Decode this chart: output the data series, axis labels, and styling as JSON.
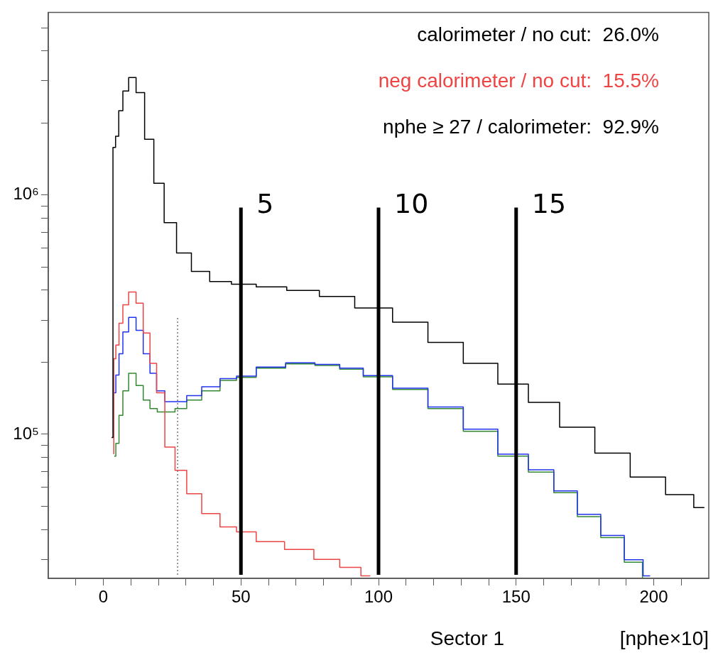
{
  "chart_data": {
    "type": "step",
    "title": "Sector 1",
    "xlabel": "[nphe×10]",
    "annotations": [
      "calorimeter / no cut:  26.0%",
      "nphe ≥ 27 / calorimeter:  92.9%",
      {
        "text": "5",
        "x": 50,
        "y": 900000
      },
      {
        "text": "10",
        "x": 100,
        "y": 900000
      },
      {
        "text": "15",
        "x": 150,
        "y": 900000
      }
    ],
    "xlim": [
      -20,
      220
    ],
    "xticks": [
      {
        "value": -10,
        "label": null
      },
      0,
      {
        "value": 10,
        "label": null
      },
      {
        "value": 20,
        "label": null
      },
      {
        "value": 30,
        "label": null
      },
      {
        "value": 40,
        "label": null
      },
      50,
      {
        "value": 60,
        "label": null
      },
      {
        "value": 70,
        "label": null
      },
      {
        "value": 80,
        "label": null
      },
      {
        "value": 90,
        "label": null
      },
      100,
      {
        "value": 110,
        "label": null
      },
      {
        "value": 120,
        "label": null
      },
      {
        "value": 130,
        "label": null
      },
      {
        "value": 140,
        "label": null
      },
      150,
      {
        "value": 160,
        "label": null
      },
      {
        "value": 170,
        "label": null
      },
      {
        "value": 180,
        "label": null
      },
      {
        "value": 190,
        "label": null
      },
      200,
      {
        "value": 210,
        "label": null
      }
    ],
    "ylim": [
      25000,
      5800000
    ],
    "yticks": [
      {
        "value": 30000,
        "label": null
      },
      {
        "value": 40000,
        "label": null
      },
      {
        "value": 50000,
        "label": null
      },
      {
        "value": 60000,
        "label": null
      },
      {
        "value": 70000,
        "label": null
      },
      {
        "value": 80000,
        "label": null
      },
      {
        "value": 90000,
        "label": null
      },
      {
        "value": 100000,
        "label": "10⁵"
      },
      {
        "value": 200000,
        "label": null
      },
      {
        "value": 300000,
        "label": null
      },
      {
        "value": 400000,
        "label": null
      },
      {
        "value": 500000,
        "label": null
      },
      {
        "value": 600000,
        "label": null
      },
      {
        "value": 700000,
        "label": null
      },
      {
        "value": 800000,
        "label": null
      },
      {
        "value": 900000,
        "label": null
      },
      {
        "value": 1000000,
        "label": "10⁶"
      },
      {
        "value": 2000000,
        "label": null
      },
      {
        "value": 3000000,
        "label": null
      },
      {
        "value": 4000000,
        "label": null
      },
      {
        "value": 5000000,
        "label": null
      }
    ],
    "log": "y",
    "grid": false,
    "legend": false,
    "series": [
      {
        "color": "#000000",
        "x": [
          3,
          4,
          4.9,
          6.3,
          7.9,
          10.5,
          13.3,
          16.7,
          20,
          24.2,
          29,
          35,
          42.3,
          50.8,
          60.3,
          73,
          84,
          98.7,
          111.5,
          124.4,
          137.2,
          149.5,
          159.4,
          172.2,
          185,
          197.9,
          210.7,
          218.4
        ],
        "values": [
          97000,
          1580000,
          1760000,
          2250000,
          2720000,
          3100000,
          2680000,
          1710000,
          1120000,
          767000,
          572000,
          479000,
          435000,
          424000,
          413000,
          399000,
          377000,
          337000,
          294000,
          242000,
          198000,
          162000,
          136000,
          107000,
          83400,
          66300,
          56000,
          49400
        ]
      },
      {
        "name": "neg calorimeter / no cut:  15.5%",
        "color": "#ee4444",
        "x": [
          3.6,
          4,
          5.1,
          6.3,
          7.9,
          10.5,
          13.3,
          15.7,
          18.2,
          20.5,
          24.2,
          27.9,
          32.7,
          38.8,
          46,
          50.8,
          60.3,
          71.4,
          81.6,
          90.2,
          97
        ],
        "values": [
          83000,
          207000,
          236000,
          291000,
          348000,
          393000,
          353000,
          265000,
          198000,
          149000,
          88500,
          70700,
          56400,
          46600,
          41000,
          39100,
          35600,
          33000,
          30000,
          27800,
          25600
        ]
      },
      {
        "color": "#2233ee",
        "x": [
          4,
          5.1,
          6.3,
          7.9,
          10.5,
          13.3,
          15.7,
          18.2,
          20.5,
          24.2,
          27.9,
          32.7,
          38.8,
          46,
          50.8,
          60.3,
          72.2,
          81.6,
          90.2,
          98.7,
          111.5,
          124.4,
          137.2,
          149.5,
          159.4,
          168,
          176.5,
          185,
          193.6,
          198.7
        ],
        "values": [
          149000,
          177000,
          217000,
          268000,
          308000,
          272000,
          217000,
          180000,
          152000,
          137000,
          137000,
          145000,
          158000,
          171000,
          175000,
          191000,
          199000,
          196000,
          189000,
          176000,
          156000,
          130000,
          105000,
          82600,
          71100,
          58000,
          46300,
          37800,
          29900,
          25600
        ]
      },
      {
        "color": "#338833",
        "x": [
          4,
          5.1,
          6.3,
          7.9,
          10.5,
          13.3,
          15.7,
          18.2,
          21,
          24.2,
          27.9,
          32.7,
          38.8,
          46,
          50.8,
          60.3,
          72.2,
          81.6,
          90.2,
          98.7,
          111.5,
          124.4,
          137.2,
          149.5,
          159.4,
          168,
          176.5,
          185,
          193.6,
          198.2
        ],
        "values": [
          81000,
          91600,
          120000,
          152000,
          180000,
          160000,
          139000,
          128000,
          124000,
          124000,
          128000,
          139000,
          152000,
          168000,
          173000,
          189000,
          197000,
          194000,
          187000,
          174000,
          154000,
          128000,
          103000,
          81000,
          69500,
          57000,
          45300,
          37000,
          29200,
          25000
        ]
      }
    ],
    "ref_lines": [
      {
        "axis": "x",
        "value": 27,
        "label": null,
        "color": "#777777",
        "line_style": "dotted"
      },
      {
        "axis": "x",
        "value": 50,
        "label": null,
        "color": "#000000",
        "line_style": "solid"
      },
      {
        "axis": "x",
        "value": 100,
        "label": null,
        "color": "#000000",
        "line_style": "solid"
      },
      {
        "axis": "x",
        "value": 150,
        "label": null,
        "color": "#000000",
        "line_style": "solid"
      }
    ]
  }
}
